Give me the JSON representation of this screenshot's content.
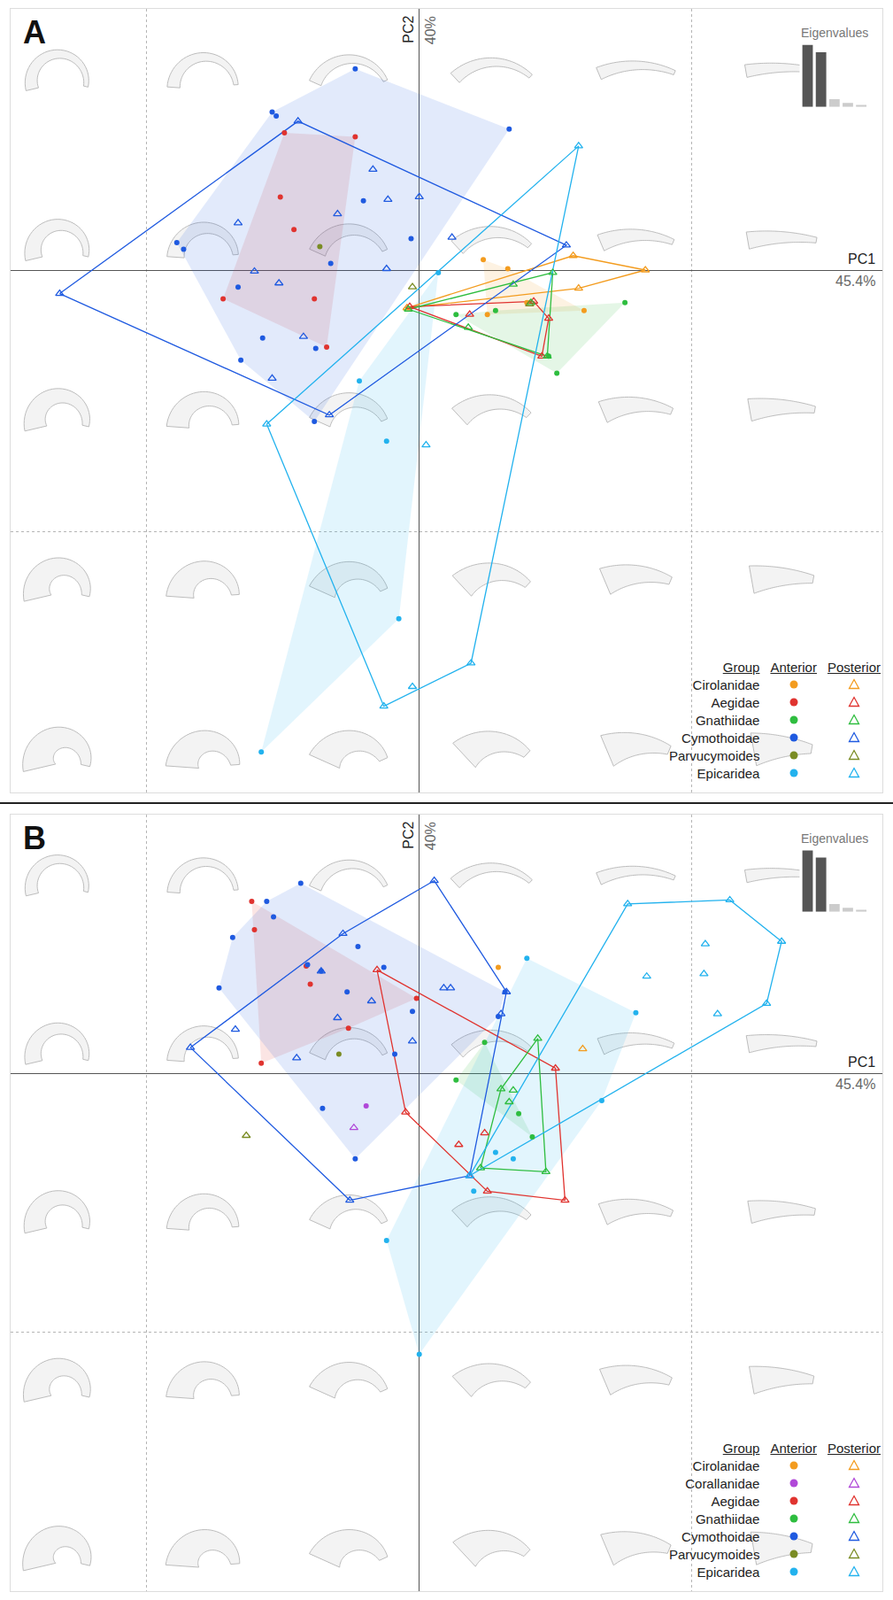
{
  "chart_data": [
    {
      "type": "scatter",
      "title": "A",
      "x_label": "PC1",
      "x_label_note": "45.4%",
      "y_label": "PC2",
      "y_label_note": "40%",
      "xlim": [
        -0.3,
        0.34
      ],
      "ylim": [
        -0.4,
        0.2
      ],
      "xticks": [
        -0.2,
        0,
        0.2
      ],
      "yticks": [
        -0.2,
        0
      ],
      "grid": true,
      "tick_labels": false,
      "legend": "bottom right",
      "legend_header": [
        "Group",
        "Anterior",
        "Posterior"
      ],
      "eigenvalues": {
        "title": "Eigenvalues",
        "values": [
          45.4,
          40,
          5.6,
          2.8,
          1.4
        ],
        "colors": [
          "#555555",
          "#555555",
          "#cccccc",
          "#cccccc",
          "#cccccc"
        ],
        "ylim": [
          0,
          46
        ]
      },
      "groups": [
        {
          "name": "Cirolanidae",
          "color": "#f39c1f",
          "anterior": {
            "marker": "circle",
            "x": [
              0.047,
              0.065,
              0.05,
              0.121,
              0.079
            ],
            "y": [
              0.008,
              0.001,
              -0.034,
              -0.031,
              -0.025
            ]
          },
          "posterior": {
            "marker": "triangle-up-open",
            "x": [
              0.113,
              0.166,
              0.117,
              -0.009
            ],
            "y": [
              0.011,
              0.0,
              -0.014,
              -0.029
            ]
          }
        },
        {
          "name": "Aegidae",
          "color": "#e0332f",
          "anterior": {
            "marker": "circle",
            "x": [
              -0.099,
              -0.047,
              -0.102,
              -0.092,
              -0.144,
              -0.077,
              -0.068
            ],
            "y": [
              0.105,
              0.102,
              0.056,
              0.031,
              -0.022,
              -0.022,
              -0.059
            ]
          },
          "posterior": {
            "marker": "triangle-up-open",
            "x": [
              -0.007,
              0.037,
              0.084,
              0.095,
              0.09
            ],
            "y": [
              -0.028,
              -0.034,
              -0.024,
              -0.037,
              -0.066
            ]
          }
        },
        {
          "name": "Gnathiidae",
          "color": "#2ebd3f",
          "anterior": {
            "marker": "circle",
            "x": [
              0.027,
              0.151,
              0.101,
              0.095,
              0.056
            ],
            "y": [
              -0.034,
              -0.025,
              -0.079,
              -0.066,
              -0.031
            ]
          },
          "posterior": {
            "marker": "triangle-up-open",
            "x": [
              0.098,
              0.069,
              0.036,
              0.094,
              0.082,
              -0.008
            ],
            "y": [
              -0.002,
              -0.011,
              -0.044,
              -0.066,
              -0.025,
              -0.03
            ]
          }
        },
        {
          "name": "Cymothoidae",
          "color": "#1f5ae0",
          "anterior": {
            "marker": "circle",
            "x": [
              -0.108,
              -0.105,
              0.066,
              -0.041,
              -0.006,
              -0.065,
              -0.133,
              -0.178,
              -0.173,
              -0.115,
              -0.076,
              -0.131,
              -0.077,
              -0.047
            ],
            "y": [
              0.121,
              0.118,
              0.108,
              0.053,
              0.024,
              0.005,
              -0.013,
              0.021,
              0.016,
              -0.052,
              -0.06,
              -0.069,
              -0.116,
              0.154
            ]
          },
          "posterior": {
            "marker": "triangle-up-open",
            "x": [
              -0.264,
              -0.089,
              0.108,
              -0.066,
              -0.034,
              -0.023,
              0.0,
              -0.06,
              -0.133,
              0.024,
              -0.121,
              -0.103,
              -0.024,
              -0.085,
              -0.108
            ],
            "y": [
              -0.018,
              0.114,
              0.019,
              -0.111,
              0.077,
              0.054,
              0.056,
              0.043,
              0.036,
              0.025,
              -0.001,
              -0.01,
              0.001,
              -0.051,
              -0.083
            ]
          }
        },
        {
          "name": "Parvucymoides",
          "color": "#7a8c24",
          "anterior": {
            "marker": "circle",
            "x": [
              -0.073
            ],
            "y": [
              0.018
            ]
          },
          "posterior": {
            "marker": "triangle-up-open",
            "x": [
              -0.005,
              0.081
            ],
            "y": [
              -0.013,
              -0.026
            ]
          }
        },
        {
          "name": "Epicaridea",
          "color": "#22b2ee",
          "anterior": {
            "marker": "circle",
            "x": [
              0.014,
              -0.044,
              -0.024,
              -0.015,
              -0.116
            ],
            "y": [
              -0.002,
              -0.085,
              -0.131,
              -0.267,
              -0.369
            ]
          },
          "posterior": {
            "marker": "triangle-up-open",
            "x": [
              0.117,
              -0.112,
              0.038,
              -0.026,
              -0.005,
              0.005
            ],
            "y": [
              0.095,
              -0.118,
              -0.301,
              -0.334,
              -0.319,
              -0.134
            ]
          }
        }
      ]
    },
    {
      "type": "scatter",
      "title": "B",
      "x_label": "PC1",
      "x_label_note": "45.4%",
      "y_label": "PC2",
      "y_label_note": "40%",
      "xlim": [
        -0.3,
        0.34
      ],
      "ylim": [
        -0.4,
        0.2
      ],
      "xticks": [
        -0.2,
        0,
        0.2
      ],
      "yticks": [
        -0.2,
        0
      ],
      "grid": true,
      "tick_labels": false,
      "legend": "bottom right",
      "legend_header": [
        "Group",
        "Anterior",
        "Posterior"
      ],
      "eigenvalues": {
        "title": "Eigenvalues",
        "values": [
          45.4,
          40,
          5.6,
          2.8,
          1.4
        ],
        "colors": [
          "#555555",
          "#555555",
          "#cccccc",
          "#cccccc",
          "#cccccc"
        ],
        "ylim": [
          0,
          46
        ]
      },
      "groups": [
        {
          "name": "Cirolanidae",
          "color": "#f39c1f",
          "anterior": {
            "marker": "circle",
            "x": [
              0.058
            ],
            "y": [
              0.082
            ]
          },
          "posterior": {
            "marker": "triangle-up-open",
            "x": [
              0.12
            ],
            "y": [
              0.019
            ]
          }
        },
        {
          "name": "Corallanidae",
          "color": "#b048d8",
          "anterior": {
            "marker": "circle",
            "x": [
              -0.039
            ],
            "y": [
              -0.025
            ]
          },
          "posterior": {
            "marker": "triangle-up-open",
            "x": [
              -0.048
            ],
            "y": [
              -0.042
            ]
          }
        },
        {
          "name": "Aegidae",
          "color": "#e0332f",
          "anterior": {
            "marker": "circle",
            "x": [
              -0.123,
              -0.121,
              -0.083,
              -0.08,
              -0.052,
              -0.116,
              -0.002
            ],
            "y": [
              0.133,
              0.111,
              0.083,
              0.069,
              0.035,
              0.008,
              0.058
            ]
          },
          "posterior": {
            "marker": "triangle-up-open",
            "x": [
              -0.031,
              0.1,
              0.107,
              0.05,
              -0.01,
              0.029,
              0.048
            ],
            "y": [
              0.08,
              0.004,
              -0.098,
              -0.091,
              -0.03,
              -0.055,
              -0.046
            ]
          }
        },
        {
          "name": "Gnathiidae",
          "color": "#2ebd3f",
          "anterior": {
            "marker": "circle",
            "x": [
              0.027,
              0.048,
              0.083,
              0.073
            ],
            "y": [
              -0.005,
              0.024,
              -0.049,
              -0.031
            ]
          },
          "posterior": {
            "marker": "triangle-up-open",
            "x": [
              0.087,
              0.093,
              0.045,
              0.069,
              0.06,
              0.066
            ],
            "y": [
              0.027,
              -0.076,
              -0.073,
              -0.013,
              -0.012,
              -0.022
            ]
          }
        },
        {
          "name": "Cymothoidae",
          "color": "#1f5ae0",
          "anterior": {
            "marker": "circle",
            "x": [
              -0.087,
              -0.112,
              -0.107,
              -0.137,
              -0.147,
              -0.082,
              -0.045,
              -0.026,
              -0.053,
              -0.072,
              -0.018,
              -0.071,
              -0.047,
              0.058,
              0.063,
              -0.005
            ],
            "y": [
              0.147,
              0.133,
              0.121,
              0.105,
              0.066,
              0.084,
              0.098,
              0.082,
              0.063,
              0.079,
              0.015,
              -0.027,
              -0.066,
              0.044,
              0.063,
              0.048
            ]
          },
          "posterior": {
            "marker": "triangle-up-open",
            "x": [
              0.011,
              -0.168,
              -0.051,
              0.037,
              0.064,
              -0.056,
              -0.072,
              -0.035,
              -0.06,
              -0.135,
              -0.09,
              0.018,
              0.023,
              -0.005,
              0.06
            ],
            "y": [
              0.149,
              0.02,
              -0.098,
              -0.079,
              0.063,
              0.108,
              0.079,
              0.056,
              0.043,
              0.034,
              0.012,
              0.066,
              0.066,
              0.025,
              0.046
            ]
          }
        },
        {
          "name": "Parvucymoides",
          "color": "#7a8c24",
          "anterior": {
            "marker": "circle",
            "x": [
              -0.059
            ],
            "y": [
              0.015
            ]
          },
          "posterior": {
            "marker": "triangle-up-open",
            "x": [
              -0.127
            ],
            "y": [
              -0.048
            ]
          }
        },
        {
          "name": "Epicaridea",
          "color": "#22b2ee",
          "anterior": {
            "marker": "circle",
            "x": [
              0.079,
              0.159,
              0.134,
              0.069,
              0.056,
              0.04,
              -0.024,
              0.0
            ],
            "y": [
              0.089,
              0.047,
              -0.021,
              -0.066,
              -0.061,
              -0.091,
              -0.129,
              -0.217
            ]
          },
          "posterior": {
            "marker": "triangle-up-open",
            "x": [
              0.153,
              0.228,
              0.266,
              0.255,
              0.21,
              0.209,
              0.167,
              0.219,
              0.037
            ],
            "y": [
              0.131,
              0.134,
              0.102,
              0.054,
              0.1,
              0.077,
              0.075,
              0.046,
              -0.079
            ]
          }
        }
      ]
    }
  ]
}
